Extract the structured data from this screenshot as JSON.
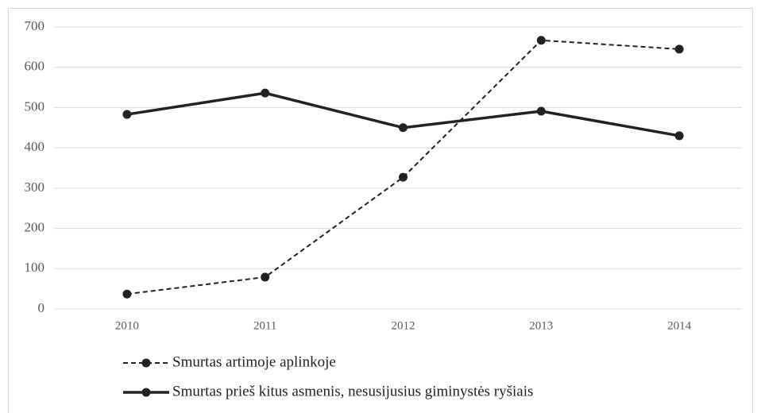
{
  "chart_data": {
    "type": "line",
    "categories": [
      "2010",
      "2011",
      "2012",
      "2013",
      "2014"
    ],
    "series": [
      {
        "name": "Smurtas artimoje aplinkoje",
        "color": "#222222",
        "line_style": "dashed",
        "values": [
          37,
          79,
          327,
          667,
          645
        ]
      },
      {
        "name": "Smurtas prieš kitus asmenis, nesusijusius giminystės ryšiais",
        "color": "#222222",
        "line_style": "solid",
        "values": [
          483,
          536,
          450,
          491,
          430
        ]
      }
    ],
    "ylim": [
      0,
      700
    ],
    "yticks": [
      0,
      100,
      200,
      300,
      400,
      500,
      600,
      700
    ],
    "grid": true,
    "legend": "bottom"
  }
}
